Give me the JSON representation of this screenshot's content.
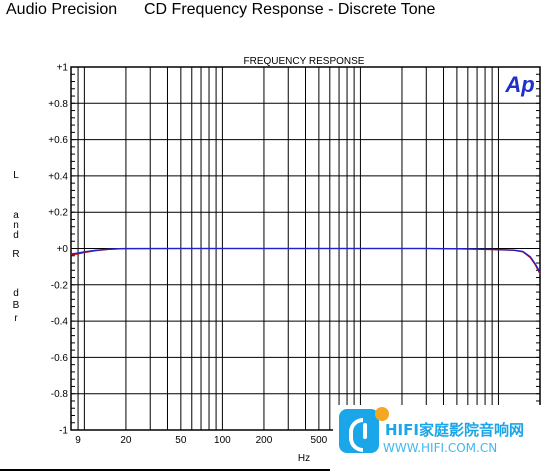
{
  "header": {
    "left_text": "Audio Precision",
    "right_text": "CD Frequency Response - Discrete Tone"
  },
  "chart_data": {
    "type": "line",
    "title": "FREQUENCY RESPONSE",
    "logo_text": "Ap",
    "xlabel": "Hz",
    "ylabel_chars": [
      "L",
      "a",
      "n",
      "d",
      "R",
      "d",
      "B",
      "r"
    ],
    "x_scale": "log",
    "xlim": [
      8,
      20000
    ],
    "ylim": [
      -1,
      1
    ],
    "x_tick_labels": [
      {
        "value": 9,
        "label": "9"
      },
      {
        "value": 20,
        "label": "20"
      },
      {
        "value": 50,
        "label": "50"
      },
      {
        "value": 100,
        "label": "100"
      },
      {
        "value": 200,
        "label": "200"
      },
      {
        "value": 500,
        "label": "500"
      }
    ],
    "y_tick_labels": [
      {
        "value": 1,
        "label": "+1"
      },
      {
        "value": 0.8,
        "label": "+0.8"
      },
      {
        "value": 0.6,
        "label": "+0.6"
      },
      {
        "value": 0.4,
        "label": "+0.4"
      },
      {
        "value": 0.2,
        "label": "+0.2"
      },
      {
        "value": 0,
        "label": "+0"
      },
      {
        "value": -0.2,
        "label": "-0.2"
      },
      {
        "value": -0.4,
        "label": "-0.4"
      },
      {
        "value": -0.6,
        "label": "-0.6"
      },
      {
        "value": -0.8,
        "label": "-0.8"
      },
      {
        "value": -1,
        "label": "-1"
      }
    ],
    "grid": true,
    "series": [
      {
        "color": "#cc0000",
        "x": [
          8,
          9,
          10,
          12,
          15,
          18,
          20,
          50,
          100,
          500,
          1000,
          3000,
          5000,
          7000,
          9000,
          11000,
          13000,
          15000,
          17000,
          18500,
          20000
        ],
        "y": [
          -0.035,
          -0.03,
          -0.022,
          -0.012,
          -0.005,
          -0.002,
          -0.001,
          0,
          0,
          0,
          0,
          0,
          -0.002,
          -0.004,
          -0.006,
          -0.008,
          -0.01,
          -0.018,
          -0.05,
          -0.09,
          -0.14
        ]
      },
      {
        "color": "#2222cc",
        "x": [
          8,
          9,
          10,
          12,
          15,
          18,
          20,
          50,
          100,
          500,
          1000,
          3000,
          5000,
          7000,
          9000,
          11000,
          13000,
          15000,
          17000,
          18500,
          20000
        ],
        "y": [
          -0.03,
          -0.025,
          -0.018,
          -0.01,
          -0.004,
          -0.001,
          0,
          0,
          0,
          0,
          0,
          0,
          -0.001,
          -0.003,
          -0.005,
          -0.007,
          -0.009,
          -0.016,
          -0.045,
          -0.085,
          -0.13
        ]
      }
    ]
  },
  "watermark": {
    "brand": "HIFI家庭影院音响网",
    "url": "WWW.HIFI.COM.CN"
  }
}
